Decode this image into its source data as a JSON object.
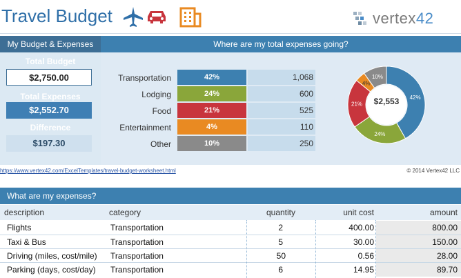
{
  "header": {
    "title": "Travel Budget",
    "icons": [
      "airplane-icon",
      "car-icon",
      "building-icon"
    ],
    "logo_text_a": "vertex",
    "logo_text_b": "42"
  },
  "summary": {
    "panel_title": "My Budget & Expenses",
    "total_budget_label": "Total Budget",
    "total_budget_value": "$2,750.00",
    "total_expenses_label": "Total Expenses",
    "total_expenses_value": "$2,552.70",
    "difference_label": "Difference",
    "difference_value": "$197.30"
  },
  "breakdown": {
    "panel_title": "Where are my total expenses going?",
    "categories": [
      {
        "label": "Transportation",
        "percent": "42%",
        "amount": "1,068",
        "color": "#3d80b0"
      },
      {
        "label": "Lodging",
        "percent": "24%",
        "amount": "600",
        "color": "#8aa63a"
      },
      {
        "label": "Food",
        "percent": "21%",
        "amount": "525",
        "color": "#c8353d"
      },
      {
        "label": "Entertainment",
        "percent": "4%",
        "amount": "110",
        "color": "#e98a22"
      },
      {
        "label": "Other",
        "percent": "10%",
        "amount": "250",
        "color": "#8a8a8a"
      }
    ],
    "donut_total": "$2,553"
  },
  "footer": {
    "url": "https://www.vertex42.com/ExcelTemplates/travel-budget-worksheet.html",
    "copyright": "© 2014 Vertex42 LLC"
  },
  "expenses": {
    "panel_title": "What are my expenses?",
    "columns": [
      "description",
      "category",
      "quantity",
      "unit cost",
      "amount"
    ],
    "rows": [
      {
        "description": "Flights",
        "category": "Transportation",
        "quantity": "2",
        "unit_cost": "400.00",
        "amount": "800.00"
      },
      {
        "description": "Taxi & Bus",
        "category": "Transportation",
        "quantity": "5",
        "unit_cost": "30.00",
        "amount": "150.00"
      },
      {
        "description": "Driving (miles, cost/mile)",
        "category": "Transportation",
        "quantity": "50",
        "unit_cost": "0.56",
        "amount": "28.00"
      },
      {
        "description": "Parking (days, cost/day)",
        "category": "Transportation",
        "quantity": "6",
        "unit_cost": "14.95",
        "amount": "89.70"
      }
    ]
  },
  "chart_data": {
    "type": "pie",
    "categories": [
      "Transportation",
      "Lodging",
      "Food",
      "Entertainment",
      "Other"
    ],
    "values": [
      1068,
      600,
      525,
      110,
      250
    ],
    "labels": [
      "42%",
      "24%",
      "21%",
      "4%",
      "10%"
    ],
    "colors": [
      "#3d80b0",
      "#8aa63a",
      "#c8353d",
      "#e98a22",
      "#8a8a8a"
    ],
    "center_label": "$2,553"
  }
}
